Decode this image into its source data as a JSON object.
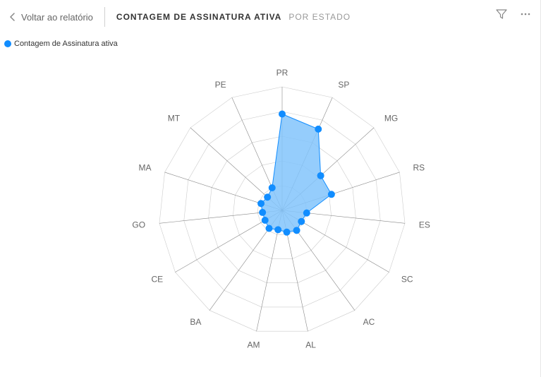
{
  "header": {
    "back_label": "Voltar ao relatório",
    "title_main": "CONTAGEM DE ASSINATURA ATIVA",
    "title_sub": "POR ESTADO"
  },
  "legend": {
    "label": "Contagem de Assinatura ativa"
  },
  "chart": {
    "type": "radar",
    "series_color": "#118dff",
    "fill_color": "#82c4fb",
    "fill_opacity": 0.85,
    "marker_radius": 5,
    "marker_color": "#118dff",
    "axis_color": "#888888",
    "axis_width": 0.6,
    "ring_count": 5,
    "ring_color": "#cccccc",
    "ring_width": 0.6,
    "max_value": 100,
    "label_color": "#666666",
    "label_fontsize": 12,
    "background_color": "#ffffff",
    "categories": [
      "PR",
      "SP",
      "MG",
      "RS",
      "ES",
      "SC",
      "AC",
      "AL",
      "AM",
      "BA",
      "CE",
      "GO",
      "MA",
      "MT",
      "PE"
    ],
    "values": [
      78,
      72,
      42,
      42,
      20,
      18,
      20,
      18,
      16,
      18,
      16,
      16,
      18,
      16,
      20
    ]
  }
}
